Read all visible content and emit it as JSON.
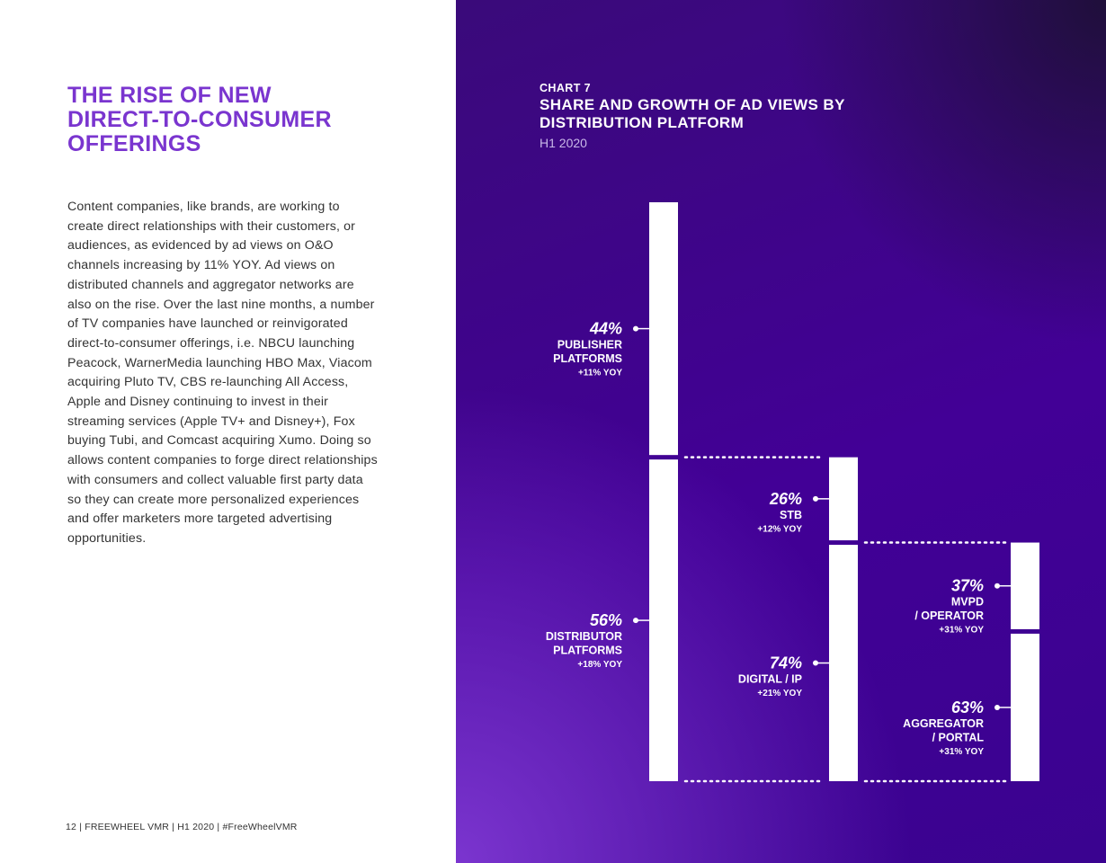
{
  "article": {
    "title_lines": [
      "THE RISE OF NEW",
      "DIRECT-TO-CONSUMER",
      "OFFERINGS"
    ],
    "body": "Content companies, like brands, are working to create direct relationships with their customers, or audiences, as evidenced by ad views on O&O channels increasing by 11% YOY. Ad views on distributed channels and aggregator networks are also on the rise. Over the last nine months, a number of TV companies have launched or reinvigorated direct-to-consumer offerings, i.e. NBCU launching Peacock, WarnerMedia launching HBO Max, Viacom acquiring Pluto TV, CBS re-launching All Access, Apple and Disney continuing to invest in their streaming services (Apple TV+ and Disney+), Fox buying Tubi, and Comcast acquiring Xumo. Doing so allows content companies to forge direct relationships with consumers and collect valuable first party data so they can create more personalized experiences and offer marketers more targeted advertising opportunities."
  },
  "footer": "12 | FREEWHEEL VMR | H1 2020 | #FreeWheelVMR",
  "chart_data": {
    "type": "bar",
    "label": "CHART 7",
    "title": "SHARE AND GROWTH OF AD VIEWS BY DISTRIBUTION PLATFORM",
    "subtitle": "H1 2020",
    "columns": [
      {
        "name": "all-ad-views",
        "segments": [
          {
            "value": 44,
            "value_label": "44%",
            "name_lines": [
              "PUBLISHER",
              "PLATFORMS"
            ],
            "yoy": "+11% YOY"
          },
          {
            "value": 56,
            "value_label": "56%",
            "name_lines": [
              "DISTRIBUTOR",
              "PLATFORMS"
            ],
            "yoy": "+18% YOY"
          }
        ]
      },
      {
        "name": "distributor-platforms",
        "segments": [
          {
            "value": 26,
            "value_label": "26%",
            "name_lines": [
              "STB"
            ],
            "yoy": "+12% YOY"
          },
          {
            "value": 74,
            "value_label": "74%",
            "name_lines": [
              "DIGITAL / IP"
            ],
            "yoy": "+21% YOY"
          }
        ]
      },
      {
        "name": "digital-ip",
        "segments": [
          {
            "value": 37,
            "value_label": "37%",
            "name_lines": [
              "MVPD",
              "/ OPERATOR"
            ],
            "yoy": "+31% YOY"
          },
          {
            "value": 63,
            "value_label": "63%",
            "name_lines": [
              "AGGREGATOR",
              "/ PORTAL"
            ],
            "yoy": "+31% YOY"
          }
        ]
      }
    ]
  }
}
